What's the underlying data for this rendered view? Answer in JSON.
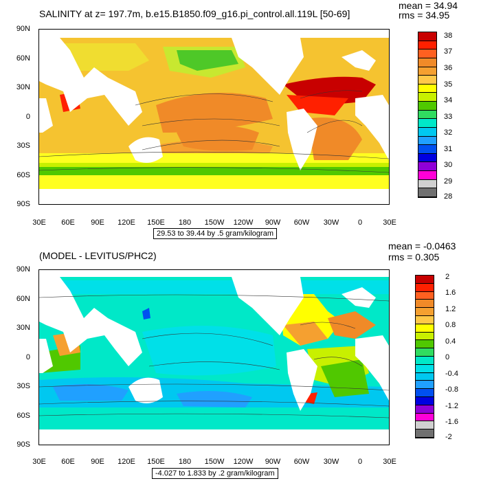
{
  "panels": [
    {
      "title": "SALINITY at z= 197.7m, b.e15.B1850.f09_g16.pi_control.all.119L [50-69]",
      "mean": "mean = 34.94",
      "rms": "rms = 34.95",
      "lat_labels": [
        "90N",
        "60N",
        "30N",
        "0",
        "30S",
        "60S",
        "90S"
      ],
      "lon_labels": [
        "30E",
        "60E",
        "90E",
        "120E",
        "150E",
        "180",
        "150W",
        "120W",
        "90W",
        "60W",
        "30W",
        "0",
        "30E"
      ],
      "info": "29.53 to 39.44 by .5 gram/kilogram",
      "colorbar_labels": [
        "38",
        "37",
        "36",
        "35",
        "34",
        "33",
        "32",
        "31",
        "30",
        "29",
        "28"
      ],
      "colorbar_colors": [
        "#c80000",
        "#ff2000",
        "#ff6020",
        "#f08a28",
        "#f5a030",
        "#ffc848",
        "#ffff00",
        "#c8f000",
        "#50c800",
        "#30dc60",
        "#00e8c8",
        "#00c8f0",
        "#20a0ff",
        "#0050f0",
        "#0000e0",
        "#9000d8",
        "#ff00d8",
        "#d0d0d0",
        "#707070"
      ]
    },
    {
      "title": "(MODEL - LEVITUS/PHC2)",
      "mean": "mean = -0.0463",
      "rms": "rms = 0.305",
      "lat_labels": [
        "90N",
        "60N",
        "30N",
        "0",
        "30S",
        "60S",
        "90S"
      ],
      "lon_labels": [
        "30E",
        "60E",
        "90E",
        "120E",
        "150E",
        "180",
        "150W",
        "120W",
        "90W",
        "60W",
        "30W",
        "0",
        "30E"
      ],
      "info": "-4.027 to 1.833 by .2 gram/kilogram",
      "colorbar_labels": [
        "2",
        "1.6",
        "1.2",
        "0.8",
        "0.4",
        "0",
        "-0.4",
        "-0.8",
        "-1.2",
        "-1.6",
        "-2"
      ],
      "colorbar_colors": [
        "#c80000",
        "#ff2000",
        "#ff6020",
        "#f08a28",
        "#f5a030",
        "#ffc848",
        "#ffff00",
        "#c8f000",
        "#50c800",
        "#30dc60",
        "#00e8c8",
        "#00e0e8",
        "#00c8f0",
        "#20a0ff",
        "#0050f0",
        "#0000e0",
        "#9000d8",
        "#ff00d8",
        "#d0d0d0",
        "#707070"
      ]
    }
  ]
}
